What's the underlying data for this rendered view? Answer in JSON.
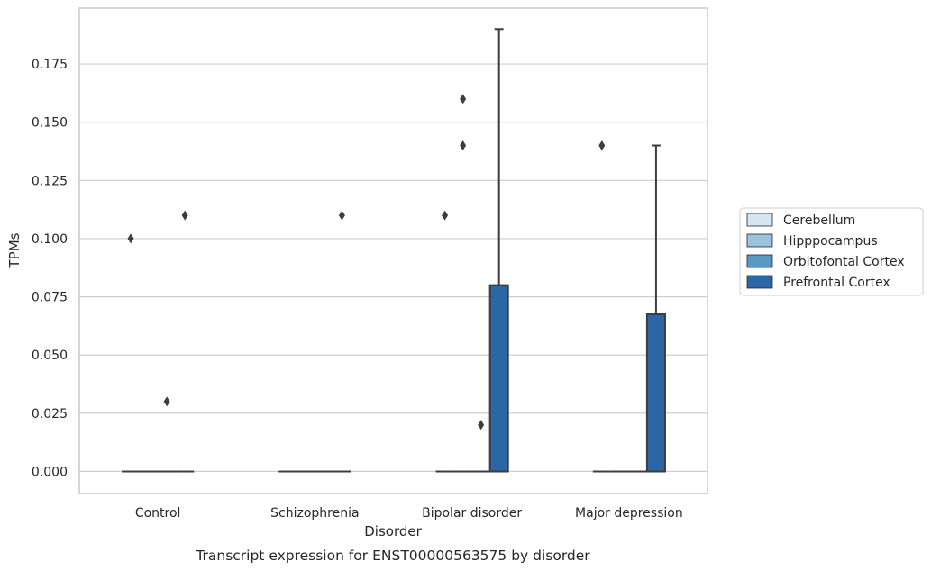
{
  "chart_data": {
    "type": "box",
    "title": "Transcript expression for ENST00000563575 by disorder",
    "xlabel": "Disorder",
    "ylabel": "TPMs",
    "categories": [
      "Control",
      "Schizophrenia",
      "Bipolar disorder",
      "Major depression"
    ],
    "ylim": [
      -0.0095,
      0.199
    ],
    "yticks": [
      "0.000",
      "0.025",
      "0.050",
      "0.075",
      "0.100",
      "0.125",
      "0.150",
      "0.175"
    ],
    "grid": true,
    "legend_position": "right",
    "series": [
      {
        "name": "Cerebellum",
        "color": "#d6e5f2",
        "boxes": [
          {
            "q1": 0,
            "median": 0,
            "q3": 0,
            "whisker_low": 0,
            "whisker_high": 0,
            "outliers": [
              0.1
            ]
          },
          {
            "q1": 0,
            "median": 0,
            "q3": 0,
            "whisker_low": 0,
            "whisker_high": 0,
            "outliers": []
          },
          {
            "q1": 0,
            "median": 0,
            "q3": 0,
            "whisker_low": 0,
            "whisker_high": 0,
            "outliers": [
              0.11
            ]
          },
          {
            "q1": 0,
            "median": 0,
            "q3": 0,
            "whisker_low": 0,
            "whisker_high": 0,
            "outliers": [
              0.14
            ]
          }
        ]
      },
      {
        "name": "Hipppocampus",
        "color": "#9cc2dd",
        "boxes": [
          {
            "q1": 0,
            "median": 0,
            "q3": 0,
            "whisker_low": 0,
            "whisker_high": 0,
            "outliers": []
          },
          {
            "q1": 0,
            "median": 0,
            "q3": 0,
            "whisker_low": 0,
            "whisker_high": 0,
            "outliers": []
          },
          {
            "q1": 0,
            "median": 0,
            "q3": 0,
            "whisker_low": 0,
            "whisker_high": 0,
            "outliers": [
              0.14,
              0.16
            ]
          },
          {
            "q1": 0,
            "median": 0,
            "q3": 0,
            "whisker_low": 0,
            "whisker_high": 0,
            "outliers": []
          }
        ]
      },
      {
        "name": "Orbitofontal Cortex",
        "color": "#5a99c4",
        "boxes": [
          {
            "q1": 0,
            "median": 0,
            "q3": 0,
            "whisker_low": 0,
            "whisker_high": 0,
            "outliers": [
              0.03
            ]
          },
          {
            "q1": 0,
            "median": 0,
            "q3": 0,
            "whisker_low": 0,
            "whisker_high": 0,
            "outliers": []
          },
          {
            "q1": 0,
            "median": 0,
            "q3": 0,
            "whisker_low": 0,
            "whisker_high": 0,
            "outliers": [
              0.02
            ]
          },
          {
            "q1": 0,
            "median": 0,
            "q3": 0,
            "whisker_low": 0,
            "whisker_high": 0,
            "outliers": []
          }
        ]
      },
      {
        "name": "Prefrontal Cortex",
        "color": "#2a67a4",
        "boxes": [
          {
            "q1": 0,
            "median": 0,
            "q3": 0,
            "whisker_low": 0,
            "whisker_high": 0,
            "outliers": [
              0.11
            ]
          },
          {
            "q1": 0,
            "median": 0,
            "q3": 0,
            "whisker_low": 0,
            "whisker_high": 0,
            "outliers": [
              0.11
            ]
          },
          {
            "q1": 0,
            "median": 0,
            "q3": 0.08,
            "whisker_low": 0,
            "whisker_high": 0.19,
            "outliers": []
          },
          {
            "q1": 0,
            "median": 0,
            "q3": 0.0675,
            "whisker_low": 0,
            "whisker_high": 0.14,
            "outliers": []
          }
        ]
      }
    ]
  }
}
